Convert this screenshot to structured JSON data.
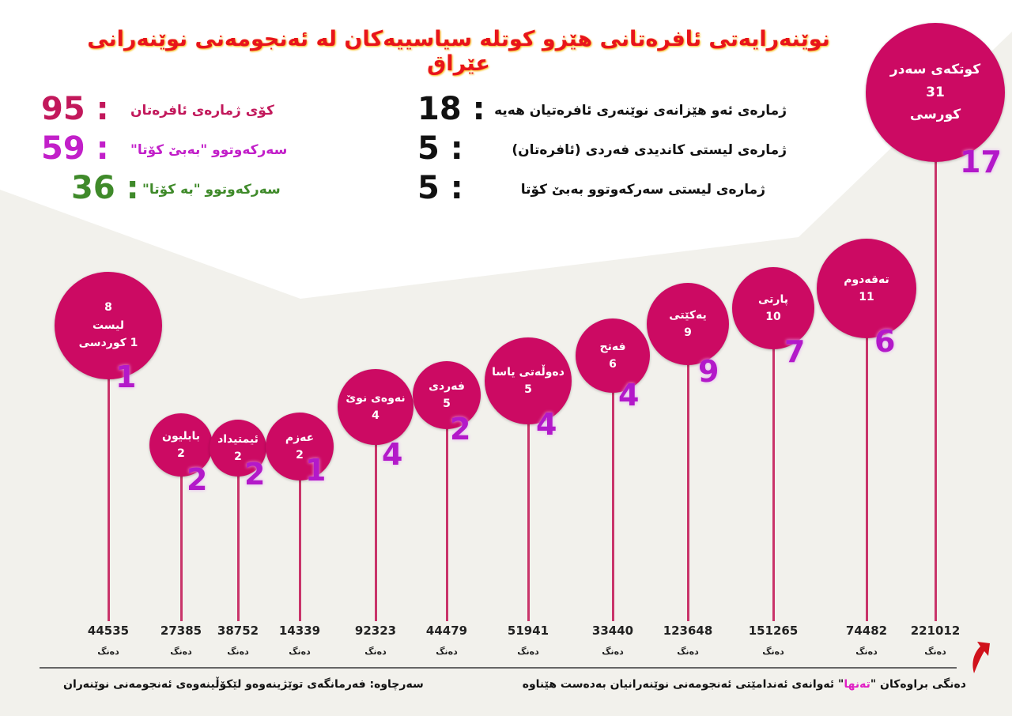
{
  "title": "نوێنەرایەتی ئافرەتانی هێزو كوتلە سیاسییەكان لە ئەنجومەنی نوێنەرانی عێراق",
  "summary_left": [
    {
      "label": "كۆی ژمارەی ئافرەتان",
      "value": "95",
      "color": "#c2185b"
    },
    {
      "label": "سەركەوتوو \"بەبێ كۆتا\"",
      "value": "59",
      "color": "#c21fc9"
    },
    {
      "label": "سەركەوتوو \"بە كۆتا\"",
      "value": "36",
      "color": "#3f8a2a"
    }
  ],
  "summary_right": [
    {
      "label": "ژمارەی ئەو هێزانەی نوێنەری ئافرەتیان هەیە",
      "value": "18"
    },
    {
      "label": "ژمارەی لیستی كاندیدی فەردی (ئافرەتان)",
      "value": "5"
    },
    {
      "label": "ژمارەی لیستی سەركەوتوو بەبێ كۆتا",
      "value": "5"
    }
  ],
  "colors": {
    "circle": "#cc0a63",
    "women_count": "#b319c9",
    "title": "#e8141b"
  },
  "chart_data": {
    "type": "bar",
    "vote_unit": "دەنگ",
    "categories": [
      {
        "lines": [
          "8",
          "لیست",
          "1 كوردسی"
        ]
      },
      {
        "lines": [
          "بابلیون",
          "2"
        ]
      },
      {
        "lines": [
          "ئیمتیداد",
          "2"
        ]
      },
      {
        "lines": [
          "عەزم",
          "2"
        ]
      },
      {
        "lines": [
          "نەوەی نوێ",
          "4"
        ]
      },
      {
        "lines": [
          "فەردی",
          "5"
        ]
      },
      {
        "lines": [
          "دەوڵەتی یاسا",
          "5"
        ]
      },
      {
        "lines": [
          "فەتح",
          "6"
        ]
      },
      {
        "lines": [
          "یەكێتی",
          "9"
        ]
      },
      {
        "lines": [
          "پارتی",
          "10"
        ]
      },
      {
        "lines": [
          "تەقەدوم",
          "11"
        ]
      },
      {
        "lines": [
          "كوتكەی سەدر",
          "31",
          "كورسی"
        ]
      }
    ],
    "seats": [
      null,
      2,
      2,
      2,
      4,
      5,
      5,
      6,
      9,
      10,
      11,
      31
    ],
    "women": [
      "1",
      "2",
      "2",
      "1",
      "4",
      "2",
      "4",
      "4",
      "9",
      "7",
      "6",
      "17"
    ],
    "votes": [
      "44535",
      "27385",
      "38752",
      "14339",
      "92323",
      "44479",
      "51941",
      "33440",
      "123648",
      "151265",
      "74482",
      "221012"
    ]
  },
  "footer": {
    "source": "سەرچاوە: فەرمانگەی توێژینەوەو لێكۆڵینەوەی ئەنجومەنی نوێنەران",
    "note_before": "دەنگی براوەكان \"",
    "note_highlight": "تەنها",
    "note_after": "\" ئەوانەی ئەندامێتی ئەنجومەنی نوێنەرانیان بەدەست هێناوە"
  }
}
